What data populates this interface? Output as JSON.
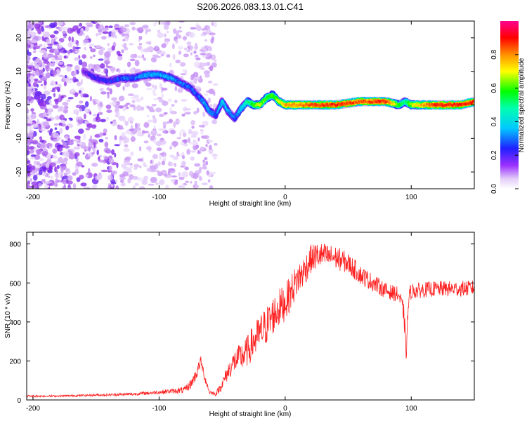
{
  "figure_title": "S206.2026.083.13.01.C41",
  "chart_data": [
    {
      "type": "heatmap",
      "title": "S206.2026.083.13.01.C41",
      "xlabel": "Height of straight line (km)",
      "ylabel": "Frequency (Hz)",
      "xlim": [
        -205,
        150
      ],
      "ylim": [
        -25,
        25
      ],
      "xticks": [
        -200,
        -100,
        0,
        100
      ],
      "yticks": [
        -20,
        -10,
        0,
        10,
        20
      ],
      "colorbar": {
        "label": "Normalized spectral amplitude",
        "range": [
          0,
          1
        ],
        "ticks": [
          0.0,
          0.2,
          0.4,
          0.6,
          0.8
        ],
        "colors": [
          "#e6d6fa",
          "#8a2be2",
          "#0000ff",
          "#00ffff",
          "#00ff00",
          "#ffff00",
          "#ff8000",
          "#ff0000",
          "#ff0090"
        ]
      },
      "ridge": {
        "x": [
          -160,
          -150,
          -140,
          -130,
          -120,
          -110,
          -100,
          -90,
          -80,
          -75,
          -70,
          -65,
          -60,
          -55,
          -50,
          -45,
          -40,
          -35,
          -30,
          -25,
          -20,
          -15,
          -10,
          -5,
          0,
          20,
          40,
          60,
          80,
          90,
          95,
          100,
          120,
          140,
          150
        ],
        "y": [
          10,
          8,
          7,
          8,
          8,
          9,
          9,
          8,
          6,
          5,
          3,
          1,
          -2,
          -3,
          1,
          -2,
          -4,
          -1,
          1,
          0,
          0,
          2,
          3,
          1,
          0,
          0,
          0,
          1,
          1,
          0,
          1,
          0,
          0,
          0,
          1
        ],
        "amplitude": [
          0.2,
          0.25,
          0.25,
          0.3,
          0.3,
          0.35,
          0.35,
          0.35,
          0.3,
          0.3,
          0.3,
          0.35,
          0.35,
          0.3,
          0.4,
          0.35,
          0.3,
          0.4,
          0.5,
          0.6,
          0.7,
          0.6,
          0.6,
          0.7,
          0.8,
          0.85,
          0.9,
          0.85,
          0.9,
          0.6,
          0.5,
          0.7,
          0.9,
          0.9,
          0.9
        ]
      }
    },
    {
      "type": "line",
      "xlabel": "Height of straight line (km)",
      "ylabel": "SNR (10 * v/v)",
      "xlim": [
        -205,
        150
      ],
      "ylim": [
        0,
        860
      ],
      "xticks": [
        -200,
        -100,
        0,
        100
      ],
      "yticks": [
        0,
        200,
        400,
        600,
        800
      ],
      "series": [
        {
          "name": "SNR",
          "color": "#ff2020",
          "x": [
            -205,
            -180,
            -150,
            -120,
            -100,
            -90,
            -80,
            -75,
            -70,
            -67,
            -64,
            -60,
            -55,
            -50,
            -45,
            -40,
            -35,
            -30,
            -25,
            -20,
            -15,
            -10,
            -5,
            0,
            5,
            10,
            15,
            20,
            25,
            30,
            40,
            50,
            60,
            70,
            80,
            90,
            94,
            96,
            98,
            100,
            105,
            110,
            120,
            130,
            140,
            150
          ],
          "y": [
            20,
            20,
            25,
            30,
            40,
            45,
            50,
            80,
            140,
            200,
            120,
            40,
            30,
            80,
            150,
            200,
            220,
            250,
            300,
            340,
            380,
            430,
            470,
            500,
            560,
            620,
            660,
            720,
            740,
            740,
            730,
            700,
            640,
            600,
            560,
            540,
            450,
            250,
            520,
            560,
            560,
            565,
            570,
            570,
            570,
            575
          ],
          "noise": [
            10,
            10,
            12,
            15,
            20,
            25,
            35,
            50,
            60,
            60,
            50,
            20,
            20,
            60,
            90,
            120,
            150,
            160,
            180,
            200,
            200,
            200,
            200,
            190,
            180,
            170,
            160,
            150,
            140,
            130,
            120,
            110,
            100,
            90,
            80,
            80,
            100,
            120,
            100,
            80,
            80,
            80,
            80,
            80,
            80,
            80
          ]
        }
      ]
    }
  ]
}
